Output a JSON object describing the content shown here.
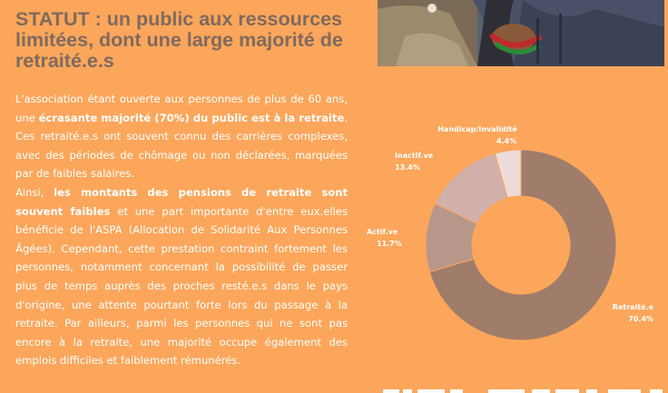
{
  "title": "STATUT : un public aux ressources limitées, dont une large majorité de retraité.e.s",
  "paragraph1": [
    {
      "text": "L'association étant ouverte aux personnes de plus de 60 ans, une ",
      "bold": false
    },
    {
      "text": "écrasante majorité (70%) du public est à la retraite",
      "bold": true
    },
    {
      "text": ". Ces retraité.e.s ont souvent connu des carrières complexes, avec des périodes de chômage ou non déclarées, marquées par de faibles salaires.",
      "bold": false
    }
  ],
  "paragraph2": [
    {
      "text": "Ainsi, ",
      "bold": false
    },
    {
      "text": "les montants des pensions de retraite sont souvent faibles",
      "bold": true
    },
    {
      "text": " et une part importante d'entre eux.elles bénéficie de l'ASPA (Allocation de Solidarité Aux Personnes Âgées). Cependant, cette prestation contraint fortement  les personnes, notamment concernant la possibilité de passer plus de temps auprès des proches resté.e.s dans le pays d'origine, une attente pourtant forte lors du passage à la retraite. Par ailleurs, parmi les personnes qui ne sont pas encore à la retraite, une majorité occupe également des emplois difficiles et faiblement rémunérés.",
      "bold": false
    }
  ],
  "photo_icon": "photo-elderly-person-icon",
  "colors": {
    "background": "#fba65b",
    "title": "#7f6a5e",
    "text": "#ffffff"
  },
  "chart_data": {
    "type": "donut",
    "title": "",
    "slices": [
      {
        "label": "Retraité.e",
        "value": 70.4,
        "value_label": "70.4%",
        "color": "#a07d6a"
      },
      {
        "label": "Actif.ve",
        "value": 11.7,
        "value_label": "11.7%",
        "color": "#b8968a"
      },
      {
        "label": "Inactif.ve",
        "value": 13.4,
        "value_label": "13.4%",
        "color": "#d2b0ab"
      },
      {
        "label": "Handicap/Invalidité",
        "value": 4.4,
        "value_label": "4.4%",
        "color": "#eddbd9"
      }
    ],
    "legend": "none",
    "start_angle_deg": 0,
    "direction": "clockwise"
  }
}
